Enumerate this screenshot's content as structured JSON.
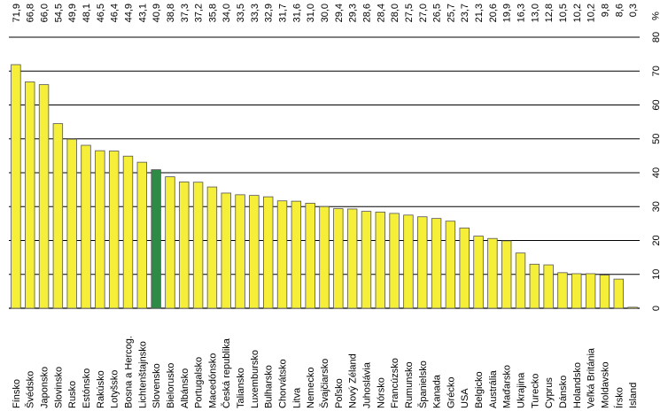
{
  "chart_data": {
    "type": "bar",
    "ylabel": "%",
    "ylim": [
      0,
      80
    ],
    "yticks": [
      0,
      10,
      20,
      30,
      40,
      50,
      60,
      70,
      80
    ],
    "grid": true,
    "value_label_position": "top",
    "category_label_position": "bottom",
    "colors": {
      "default": "#f5ef3a",
      "highlight": "#2e8b46"
    },
    "highlight": "Slovensko",
    "categories": [
      "Fínsko",
      "Švédsko",
      "Japonsko",
      "Slovinsko",
      "Rusko",
      "Estónsko",
      "Rakúsko",
      "Lotyšsko",
      "Bosna a Hercog.",
      "Lichtenštajnsko",
      "Slovensko",
      "Bielorusko",
      "Albánsko",
      "Portugalsko",
      "Macedónsko",
      "Česká republika",
      "Taliansko",
      "Luxembursko",
      "Bulharsko",
      "Chorvátsko",
      "Litva",
      "Nemecko",
      "Švajčiarsko",
      "Poľsko",
      "Nový Zéland",
      "Juhoslávia",
      "Nórsko",
      "Francúzsko",
      "Rumunsko",
      "Španielsko",
      "Kanada",
      "Grécko",
      "USA",
      "Belgicko",
      "Austrália",
      "Maďarsko",
      "Ukrajina",
      "Turecko",
      "Cyprus",
      "Dánsko",
      "Holandsko",
      "Veľká Británia",
      "Moldavsko",
      "Írsko",
      "Island"
    ],
    "values": [
      71.9,
      66.8,
      66.0,
      54.5,
      49.9,
      48.1,
      46.5,
      46.4,
      44.9,
      43.1,
      40.9,
      38.8,
      37.3,
      37.2,
      35.8,
      34.0,
      33.5,
      33.3,
      32.9,
      31.7,
      31.6,
      31.0,
      30.0,
      29.4,
      29.3,
      28.6,
      28.4,
      28.0,
      27.5,
      27.0,
      26.5,
      25.7,
      23.7,
      21.3,
      20.6,
      19.9,
      16.3,
      13.0,
      12.8,
      10.5,
      10.2,
      10.2,
      9.8,
      8.6,
      0.3
    ],
    "value_labels": [
      "71,9",
      "66,8",
      "66,0",
      "54,5",
      "49,9",
      "48,1",
      "46,5",
      "46,4",
      "44,9",
      "43,1",
      "40,9",
      "38,8",
      "37,3",
      "37,2",
      "35,8",
      "34,0",
      "33,5",
      "33,3",
      "32,9",
      "31,7",
      "31,6",
      "31,0",
      "30,0",
      "29,4",
      "29,3",
      "28,6",
      "28,4",
      "28,0",
      "27,5",
      "27,0",
      "26,5",
      "25,7",
      "23,7",
      "21,3",
      "20,6",
      "19,9",
      "16,3",
      "13,0",
      "12,8",
      "10,5",
      "10,2",
      "10,2",
      "9,8",
      "8,6",
      "0,3"
    ]
  }
}
